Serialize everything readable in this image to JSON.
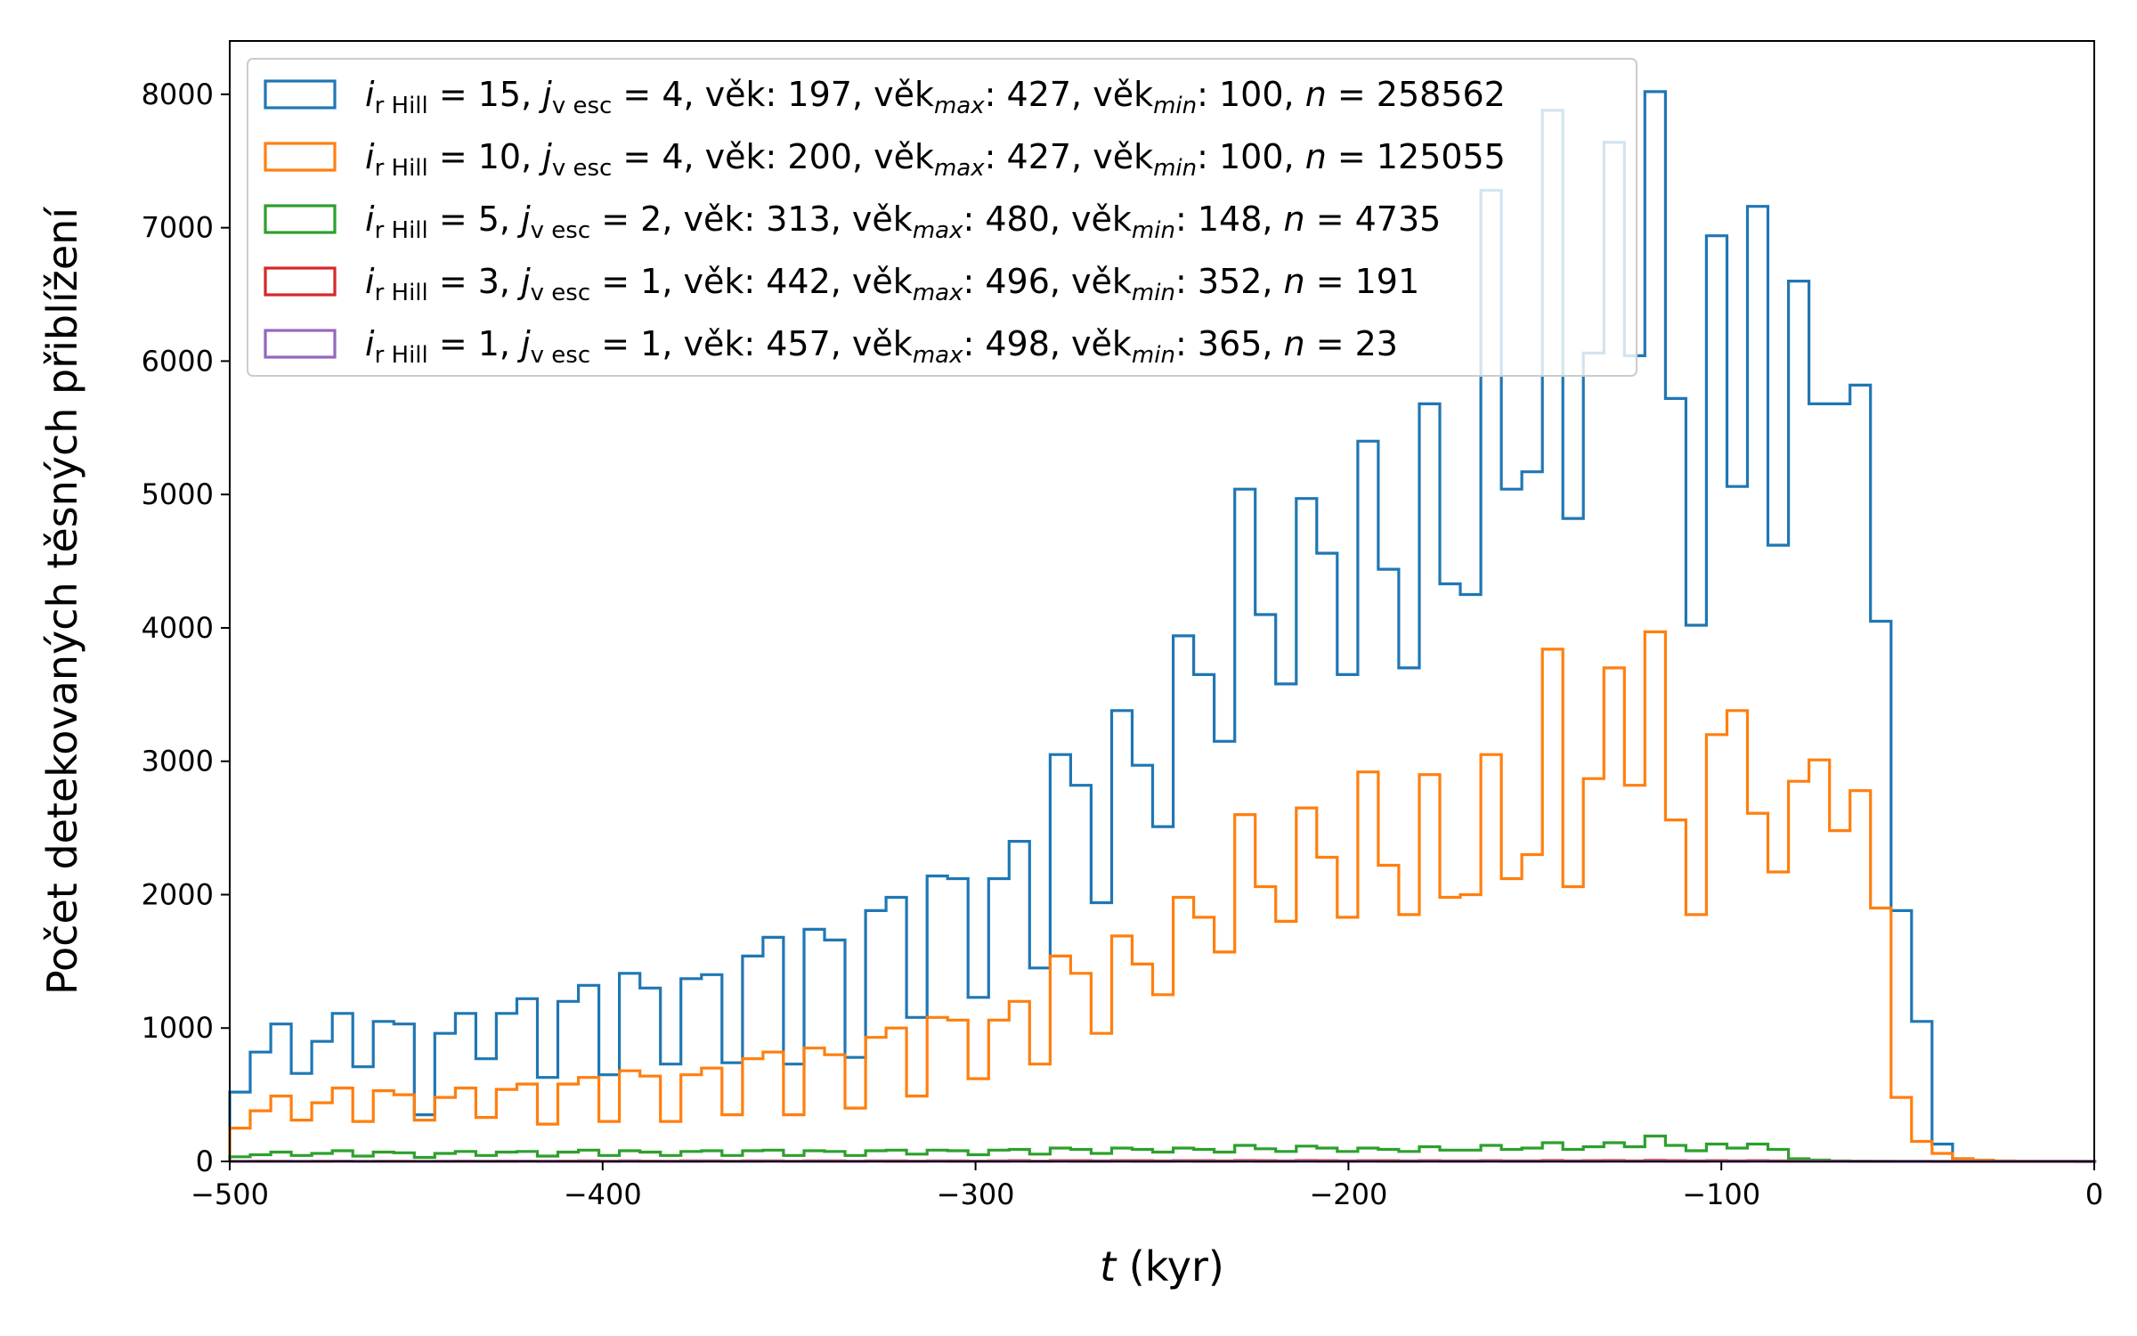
{
  "chart_data": {
    "type": "histogram",
    "xlabel": "t (kyr)",
    "xlabel_parts": {
      "var": "t",
      "unit": " (kyr)"
    },
    "ylabel": "Počet detekovaných těsných přiblížení",
    "xlim": [
      -500,
      0
    ],
    "ylim": [
      0,
      8400
    ],
    "xticks": [
      -500,
      -400,
      -300,
      -200,
      -100,
      0
    ],
    "xtick_labels": [
      "−500",
      "−400",
      "−300",
      "−200",
      "−100",
      "0"
    ],
    "yticks": [
      0,
      1000,
      2000,
      3000,
      4000,
      5000,
      6000,
      7000,
      8000
    ],
    "ytick_labels": [
      "0",
      "1000",
      "2000",
      "3000",
      "4000",
      "5000",
      "6000",
      "7000",
      "8000"
    ],
    "legend_position": "top-left",
    "bin_start": -500,
    "bin_width": 5.5,
    "series": [
      {
        "key": "blue",
        "color": "#1f77b4",
        "legend": {
          "i_rHill": "15",
          "j_vesc": "4",
          "vek": "197",
          "vek_max": "427",
          "vek_min": "100",
          "n": "258562"
        },
        "values": [
          520,
          820,
          1030,
          660,
          900,
          1110,
          710,
          1050,
          1030,
          350,
          960,
          1110,
          770,
          1110,
          1220,
          630,
          1200,
          1320,
          650,
          1410,
          1300,
          730,
          1370,
          1400,
          740,
          1540,
          1680,
          730,
          1740,
          1660,
          780,
          1880,
          1980,
          1080,
          2140,
          2120,
          1230,
          2120,
          2400,
          1450,
          3050,
          2820,
          1940,
          3380,
          2970,
          2510,
          3940,
          3650,
          3150,
          5040,
          4100,
          3580,
          4970,
          4560,
          3650,
          5400,
          4440,
          3700,
          5680,
          4330,
          4250,
          7280,
          5040,
          5170,
          7880,
          4820,
          6060,
          7640,
          6040,
          8020,
          5720,
          4020,
          6940,
          5060,
          7160,
          4620,
          6600,
          5680,
          5680,
          5820,
          4050,
          1880,
          1050,
          130,
          20,
          5,
          3,
          2,
          1,
          1,
          0
        ]
      },
      {
        "key": "orange",
        "color": "#ff7f0e",
        "legend": {
          "i_rHill": "10",
          "j_vesc": "4",
          "vek": "200",
          "vek_max": "427",
          "vek_min": "100",
          "n": "125055"
        },
        "values": [
          250,
          380,
          490,
          310,
          440,
          550,
          300,
          530,
          500,
          310,
          480,
          550,
          330,
          540,
          580,
          280,
          580,
          630,
          300,
          680,
          640,
          300,
          650,
          700,
          350,
          770,
          820,
          350,
          850,
          800,
          400,
          930,
          1000,
          490,
          1080,
          1060,
          620,
          1060,
          1200,
          730,
          1540,
          1410,
          960,
          1690,
          1480,
          1250,
          1980,
          1830,
          1570,
          2600,
          2060,
          1800,
          2650,
          2280,
          1830,
          2920,
          2220,
          1850,
          2900,
          1980,
          2000,
          3050,
          2120,
          2300,
          3840,
          2060,
          2870,
          3700,
          2820,
          3970,
          2560,
          1850,
          3200,
          3380,
          2610,
          2170,
          2850,
          3010,
          2480,
          2780,
          1900,
          480,
          150,
          60,
          20,
          10,
          5,
          3,
          2,
          1,
          0
        ]
      },
      {
        "key": "green",
        "color": "#2ca02c",
        "legend": {
          "i_rHill": "5",
          "j_vesc": "2",
          "vek": "313",
          "vek_max": "480",
          "vek_min": "148",
          "n": "4735"
        },
        "values": [
          35,
          50,
          70,
          45,
          60,
          80,
          40,
          70,
          65,
          30,
          60,
          75,
          45,
          70,
          75,
          40,
          70,
          85,
          45,
          80,
          70,
          45,
          75,
          80,
          45,
          80,
          85,
          45,
          80,
          75,
          45,
          80,
          85,
          55,
          85,
          80,
          50,
          85,
          90,
          55,
          100,
          90,
          60,
          100,
          90,
          70,
          100,
          90,
          70,
          120,
          95,
          75,
          115,
          100,
          75,
          100,
          90,
          75,
          110,
          85,
          85,
          120,
          90,
          100,
          140,
          90,
          110,
          140,
          110,
          190,
          120,
          80,
          130,
          100,
          130,
          90,
          20,
          10,
          5,
          3,
          2,
          1,
          1,
          0,
          0,
          0,
          0,
          0,
          0,
          0,
          0
        ]
      },
      {
        "key": "red",
        "color": "#d62728",
        "legend": {
          "i_rHill": "3",
          "j_vesc": "1",
          "vek": "442",
          "vek_max": "496",
          "vek_min": "352",
          "n": "191"
        },
        "values": [
          1,
          2,
          2,
          1,
          2,
          3,
          1,
          2,
          2,
          1,
          2,
          3,
          2,
          3,
          3,
          2,
          3,
          4,
          2,
          4,
          3,
          2,
          4,
          4,
          2,
          4,
          5,
          2,
          5,
          4,
          2,
          5,
          5,
          3,
          5,
          5,
          3,
          5,
          6,
          3,
          6,
          6,
          4,
          6,
          6,
          4,
          6,
          6,
          4,
          7,
          6,
          4,
          7,
          6,
          4,
          6,
          6,
          4,
          6,
          5,
          5,
          6,
          5,
          5,
          7,
          5,
          6,
          7,
          5,
          8,
          6,
          4,
          6,
          5,
          6,
          4,
          2,
          1,
          1,
          0,
          0,
          0,
          0,
          0,
          0,
          0,
          0,
          0,
          0,
          0,
          0
        ]
      },
      {
        "key": "purple",
        "color": "#9467bd",
        "legend": {
          "i_rHill": "1",
          "j_vesc": "1",
          "vek": "457",
          "vek_max": "498",
          "vek_min": "365",
          "n": "23"
        },
        "values": [
          0,
          0,
          0,
          0,
          0,
          1,
          0,
          0,
          0,
          0,
          0,
          0,
          0,
          0,
          1,
          0,
          0,
          0,
          0,
          1,
          0,
          0,
          0,
          1,
          0,
          0,
          1,
          0,
          0,
          0,
          0,
          1,
          0,
          0,
          1,
          0,
          0,
          0,
          1,
          0,
          1,
          0,
          0,
          1,
          0,
          0,
          1,
          0,
          0,
          1,
          0,
          0,
          1,
          0,
          0,
          1,
          0,
          0,
          1,
          0,
          0,
          1,
          0,
          0,
          1,
          0,
          0,
          1,
          0,
          1,
          0,
          0,
          1,
          0,
          1,
          0,
          0,
          0,
          0,
          0,
          0,
          0,
          0,
          0,
          0,
          0,
          0,
          0,
          0,
          0,
          0
        ]
      }
    ]
  },
  "legend_labels": {
    "i": "i",
    "i_sub": "r Hill",
    "j": "j",
    "j_sub": "v esc",
    "vek": "věk",
    "max_sub": "max",
    "min_sub": "min",
    "n": "n"
  }
}
